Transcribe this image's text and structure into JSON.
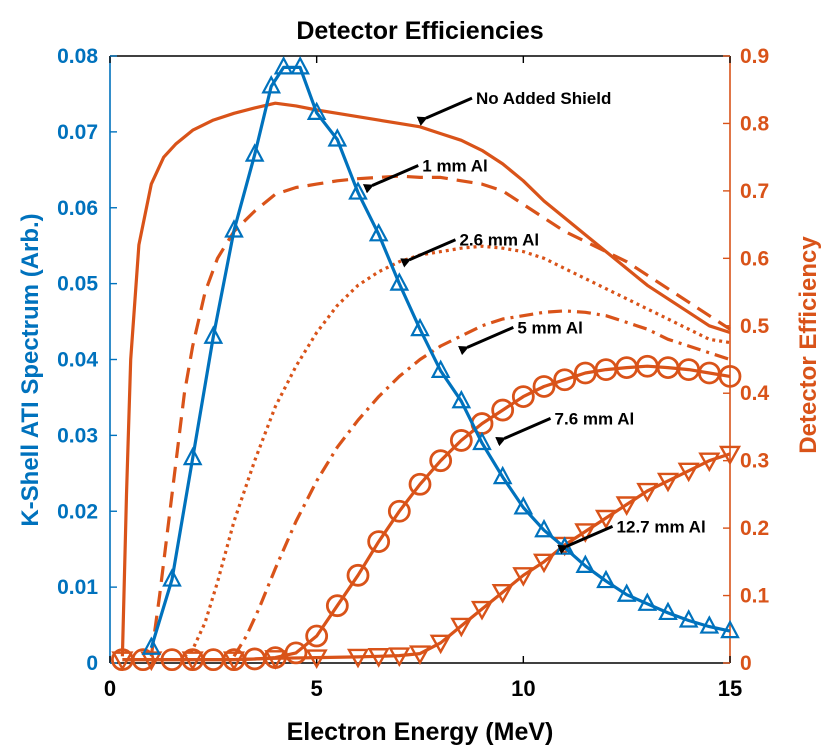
{
  "chart_data": {
    "type": "line",
    "title": "Detector Efficiencies",
    "xlabel": "Electron Energy (MeV)",
    "ylabel_left": "K-Shell ATI Spectrum (Arb.)",
    "ylabel_right": "Detector Efficiency",
    "xlim": [
      0,
      15
    ],
    "ylim_left": [
      0,
      0.08
    ],
    "ylim_right": [
      0,
      0.9
    ],
    "x_ticks": [
      0,
      5,
      10,
      15
    ],
    "x_tick_labels": [
      "0",
      "5",
      "10",
      "15"
    ],
    "y_left_ticks": [
      0,
      0.01,
      0.02,
      0.03,
      0.04,
      0.05,
      0.06,
      0.07,
      0.08
    ],
    "y_left_tick_labels": [
      "0",
      "0.01",
      "0.02",
      "0.03",
      "0.04",
      "0.05",
      "0.06",
      "0.07",
      "0.08"
    ],
    "y_right_ticks": [
      0,
      0.1,
      0.2,
      0.3,
      0.4,
      0.5,
      0.6,
      0.7,
      0.8,
      0.9
    ],
    "y_right_tick_labels": [
      "0",
      "0.1",
      "0.2",
      "0.3",
      "0.4",
      "0.5",
      "0.6",
      "0.7",
      "0.8",
      "0.9"
    ],
    "colors": {
      "left": "#0072BD",
      "right": "#D95319",
      "arrow": "#000000",
      "axis": "#000000"
    },
    "spectrum": {
      "name": "K-Shell ATI Spectrum",
      "axis": "left",
      "marker": "triangle-up",
      "x": [
        1.0,
        1.5,
        2.0,
        2.5,
        3.0,
        3.5,
        3.9,
        4.2,
        4.6,
        5.0,
        5.5,
        6.0,
        6.5,
        7.0,
        7.5,
        8.0,
        8.5,
        9.0,
        9.5,
        10.0,
        10.5,
        11.0,
        11.5,
        12.0,
        12.5,
        13.0,
        13.5,
        14.0,
        14.5,
        15.0
      ],
      "y": [
        0.002,
        0.011,
        0.027,
        0.043,
        0.057,
        0.067,
        0.076,
        0.0785,
        0.0785,
        0.0725,
        0.069,
        0.062,
        0.0565,
        0.05,
        0.044,
        0.0385,
        0.0345,
        0.029,
        0.0245,
        0.0205,
        0.0175,
        0.0152,
        0.0128,
        0.0108,
        0.009,
        0.0078,
        0.0066,
        0.0056,
        0.0048,
        0.0042
      ]
    },
    "efficiency_series": [
      {
        "name": "No Added Shield",
        "style": "solid",
        "marker": "none",
        "x": [
          0.3,
          0.4,
          0.5,
          0.7,
          1.0,
          1.3,
          1.6,
          2.0,
          2.5,
          3.0,
          3.5,
          4.0,
          4.5,
          5.0,
          5.5,
          6.0,
          6.5,
          7.0,
          7.5,
          8.0,
          8.5,
          9.0,
          9.5,
          10.0,
          10.5,
          11.0,
          11.5,
          12.0,
          12.5,
          13.0,
          13.5,
          14.0,
          14.5,
          15.0
        ],
        "y": [
          0.01,
          0.25,
          0.45,
          0.62,
          0.71,
          0.75,
          0.77,
          0.79,
          0.805,
          0.815,
          0.823,
          0.83,
          0.826,
          0.82,
          0.815,
          0.81,
          0.805,
          0.8,
          0.795,
          0.785,
          0.775,
          0.76,
          0.74,
          0.715,
          0.685,
          0.66,
          0.635,
          0.61,
          0.585,
          0.56,
          0.54,
          0.52,
          0.5,
          0.49
        ]
      },
      {
        "name": "1 mm Al",
        "style": "dashed",
        "marker": "none",
        "x": [
          1.0,
          1.2,
          1.5,
          1.8,
          2.0,
          2.3,
          2.6,
          3.0,
          3.5,
          4.0,
          4.5,
          5.0,
          5.5,
          6.0,
          6.5,
          7.0,
          7.5,
          8.0,
          8.5,
          9.0,
          9.5,
          10.0,
          10.5,
          11.0,
          11.5,
          12.0,
          12.5,
          13.0,
          13.5,
          14.0,
          14.5,
          15.0
        ],
        "y": [
          0.01,
          0.1,
          0.25,
          0.4,
          0.47,
          0.55,
          0.6,
          0.64,
          0.67,
          0.695,
          0.705,
          0.71,
          0.715,
          0.718,
          0.72,
          0.722,
          0.72,
          0.72,
          0.715,
          0.71,
          0.7,
          0.68,
          0.66,
          0.64,
          0.625,
          0.61,
          0.595,
          0.575,
          0.555,
          0.535,
          0.515,
          0.495
        ]
      },
      {
        "name": "2.6 mm Al",
        "style": "dotted",
        "marker": "none",
        "x": [
          1.8,
          2.0,
          2.3,
          2.6,
          3.0,
          3.5,
          4.0,
          4.5,
          5.0,
          5.5,
          6.0,
          6.5,
          7.0,
          7.5,
          8.0,
          8.5,
          9.0,
          9.5,
          10.0,
          10.5,
          11.0,
          11.5,
          12.0,
          12.5,
          13.0,
          13.5,
          14.0,
          14.5,
          15.0
        ],
        "y": [
          0.01,
          0.02,
          0.06,
          0.12,
          0.21,
          0.3,
          0.38,
          0.44,
          0.49,
          0.53,
          0.56,
          0.58,
          0.595,
          0.605,
          0.61,
          0.615,
          0.618,
          0.615,
          0.61,
          0.6,
          0.585,
          0.57,
          0.555,
          0.54,
          0.525,
          0.51,
          0.495,
          0.48,
          0.475
        ]
      },
      {
        "name": "5 mm Al",
        "style": "dashdot",
        "marker": "none",
        "x": [
          3.0,
          3.3,
          3.6,
          4.0,
          4.5,
          5.0,
          5.5,
          6.0,
          6.5,
          7.0,
          7.5,
          8.0,
          8.5,
          9.0,
          9.5,
          10.0,
          10.5,
          11.0,
          11.5,
          12.0,
          12.5,
          13.0,
          13.5,
          14.0,
          14.5,
          15.0
        ],
        "y": [
          0.01,
          0.04,
          0.08,
          0.14,
          0.21,
          0.27,
          0.32,
          0.36,
          0.395,
          0.425,
          0.45,
          0.47,
          0.485,
          0.5,
          0.51,
          0.515,
          0.52,
          0.522,
          0.52,
          0.515,
          0.505,
          0.495,
          0.48,
          0.47,
          0.46,
          0.45
        ]
      },
      {
        "name": "7.6 mm Al",
        "style": "solid",
        "marker": "circle",
        "x": [
          0.3,
          0.8,
          1.5,
          2.0,
          2.5,
          3.0,
          3.5,
          4.0,
          4.5,
          5.0,
          5.5,
          6.0,
          6.5,
          7.0,
          7.5,
          8.0,
          8.5,
          9.0,
          9.5,
          10.0,
          10.5,
          11.0,
          11.5,
          12.0,
          12.5,
          13.0,
          13.5,
          14.0,
          14.5,
          15.0
        ],
        "y": [
          0.005,
          0.005,
          0.005,
          0.005,
          0.005,
          0.005,
          0.006,
          0.008,
          0.015,
          0.04,
          0.085,
          0.13,
          0.18,
          0.225,
          0.265,
          0.3,
          0.33,
          0.355,
          0.375,
          0.395,
          0.41,
          0.42,
          0.43,
          0.435,
          0.438,
          0.44,
          0.438,
          0.435,
          0.43,
          0.425
        ]
      },
      {
        "name": "12.7 mm Al",
        "style": "solid",
        "marker": "triangle-down",
        "x": [
          0.3,
          1.0,
          2.0,
          3.0,
          4.0,
          5.0,
          6.0,
          6.5,
          7.0,
          7.5,
          8.0,
          8.5,
          9.0,
          9.5,
          10.0,
          10.5,
          11.0,
          11.5,
          12.0,
          12.5,
          13.0,
          13.5,
          14.0,
          14.5,
          15.0
        ],
        "y": [
          0.005,
          0.005,
          0.005,
          0.005,
          0.007,
          0.008,
          0.009,
          0.01,
          0.011,
          0.014,
          0.03,
          0.055,
          0.08,
          0.105,
          0.13,
          0.15,
          0.175,
          0.195,
          0.215,
          0.235,
          0.255,
          0.27,
          0.285,
          0.3,
          0.31
        ]
      }
    ],
    "annotations": [
      {
        "text": "No Added Shield",
        "arrow_to": [
          7.5,
          0.805
        ]
      },
      {
        "text": "1 mm Al",
        "arrow_to": [
          6.2,
          0.705
        ]
      },
      {
        "text": "2.6 mm Al",
        "arrow_to": [
          7.1,
          0.595
        ]
      },
      {
        "text": "5 mm Al",
        "arrow_to": [
          8.5,
          0.465
        ]
      },
      {
        "text": "7.6 mm Al",
        "arrow_to": [
          9.4,
          0.33
        ]
      },
      {
        "text": "12.7 mm Al",
        "arrow_to": [
          10.9,
          0.17
        ]
      }
    ]
  }
}
